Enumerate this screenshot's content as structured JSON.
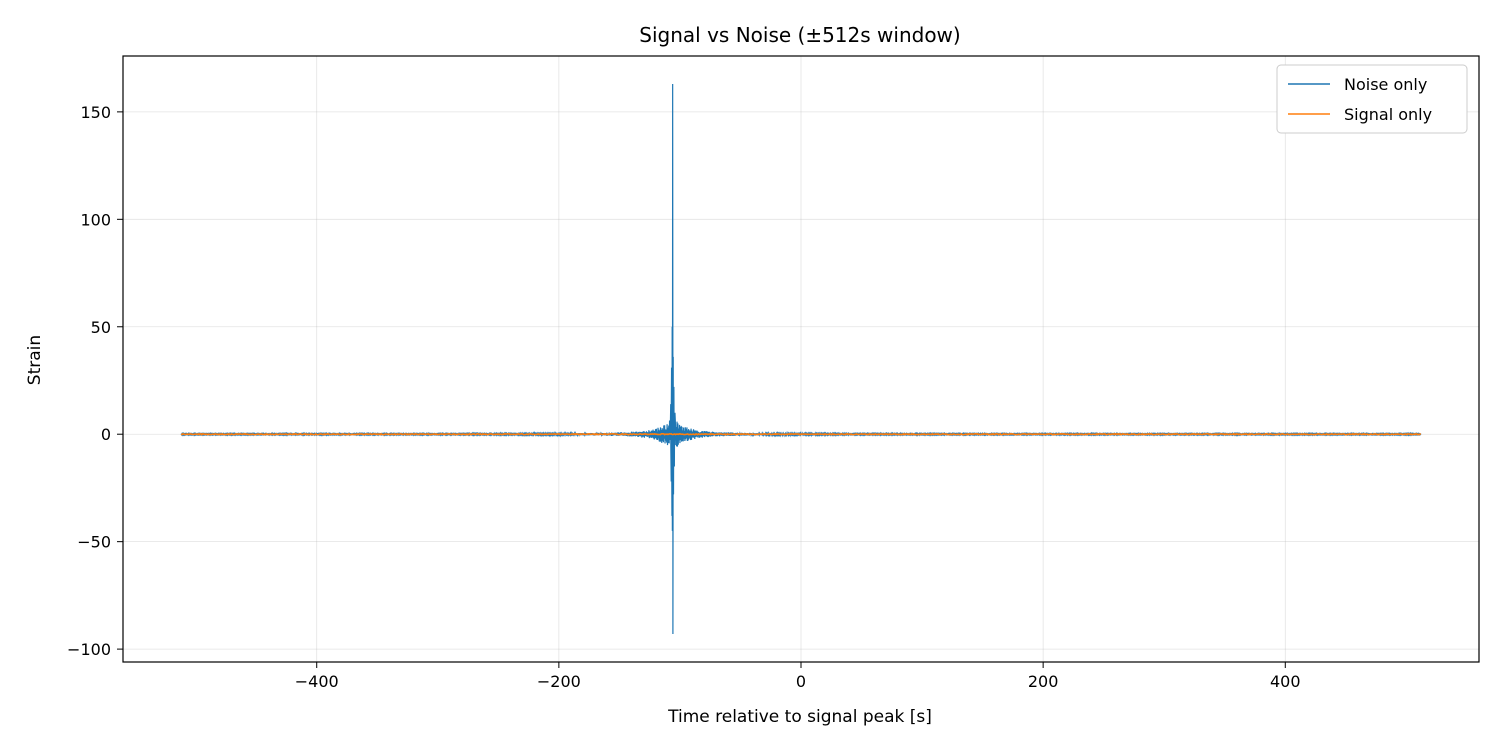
{
  "chart_data": {
    "type": "line",
    "title": "Signal vs Noise (±512s window)",
    "xlabel": "Time relative to signal peak [s]",
    "ylabel": "Strain",
    "xlim": [
      -560,
      560
    ],
    "ylim": [
      -106,
      176
    ],
    "x_ticks": [
      -400,
      -200,
      0,
      200,
      400
    ],
    "y_ticks": [
      -100,
      -50,
      0,
      50,
      100,
      150
    ],
    "x_tick_labels": [
      "−400",
      "−200",
      "0",
      "200",
      "400"
    ],
    "y_tick_labels": [
      "−100",
      "−50",
      "0",
      "50",
      "100",
      "150"
    ],
    "grid": true,
    "legend_position": "top-right",
    "series": [
      {
        "name": "Noise only",
        "color": "#1f77b4",
        "x_range": [
          -512,
          512
        ],
        "peak_time": -106,
        "peak_max": 163,
        "peak_min": -93,
        "baseline_amplitude": 0.3
      },
      {
        "name": "Signal only",
        "color": "#ff7f0e",
        "x_range": [
          -512,
          512
        ],
        "baseline_amplitude": 0.2
      }
    ]
  }
}
